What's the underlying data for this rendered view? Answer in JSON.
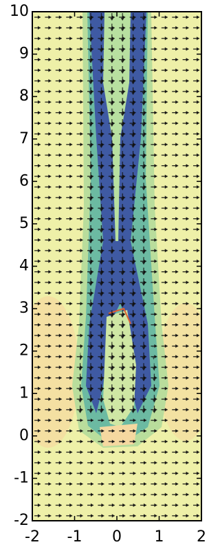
{
  "chart_data": {
    "type": "quiver",
    "xlim": [
      -2,
      2
    ],
    "ylim": [
      -2,
      10
    ],
    "xticks": [
      -2,
      -1,
      0,
      1,
      2
    ],
    "yticks": [
      -2,
      -1,
      0,
      1,
      2,
      3,
      4,
      5,
      6,
      7,
      8,
      9,
      10
    ]
  }
}
